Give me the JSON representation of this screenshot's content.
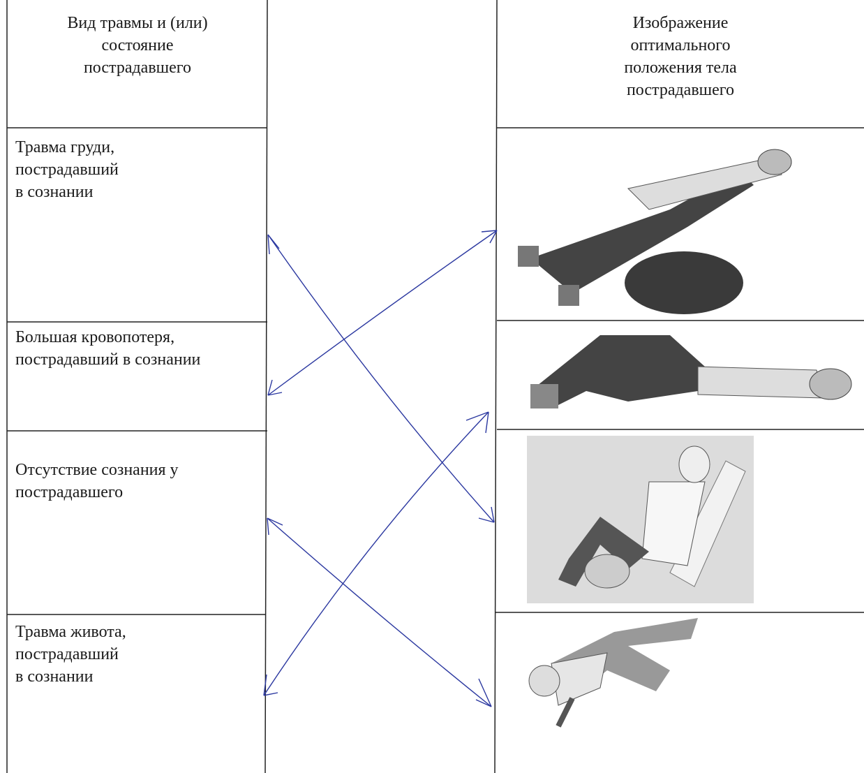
{
  "header": {
    "left": [
      "Вид травмы и (или)",
      "состояние",
      "пострадавшего"
    ],
    "right": [
      "Изображение",
      "оптимального",
      "положения тела",
      "пострадавшего"
    ]
  },
  "rows": [
    {
      "label": [
        "Травма груди,",
        "пострадавший",
        "в сознании"
      ]
    },
    {
      "label": [
        "Большая кровопотеря,",
        "пострадавший в сознании"
      ]
    },
    {
      "label": [
        "Отсутствие сознания у",
        "пострадавшего"
      ]
    },
    {
      "label": [
        "Травма живота,",
        "пострадавший",
        "в сознании"
      ]
    }
  ]
}
